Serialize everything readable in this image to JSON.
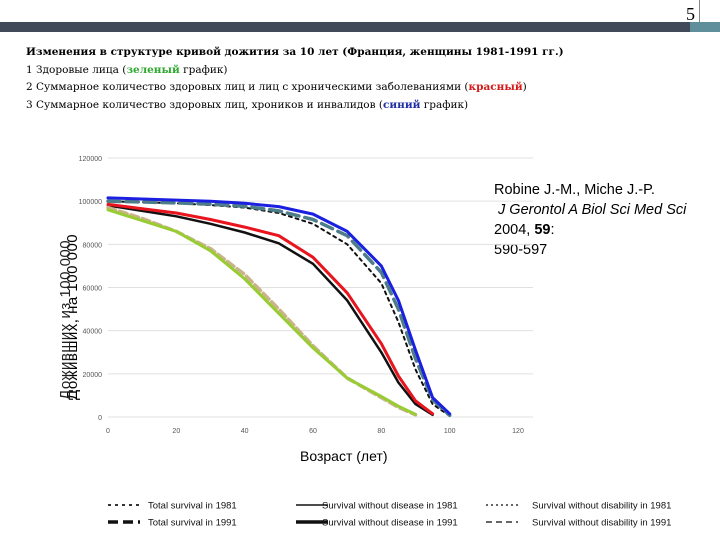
{
  "slide": {
    "page_number": "5"
  },
  "heading": {
    "title": "Изменения в структуре кривой дожития за 10 лет (Франция, женщины 1981-1991 гг.)",
    "line1_prefix": "1 Здоровые лица (",
    "line1_color": "зеленый",
    "line1_suffix": " график)",
    "line2_prefix": "2 Суммарное количество здоровых лиц и лиц с хроническими заболеваниями (",
    "line2_color": "красный",
    "line2_suffix": ")",
    "line3_prefix": "3 Суммарное количество здоровых лиц, хроников и инвалидов (",
    "line3_color": "синий",
    "line3_suffix": " график)"
  },
  "citation": {
    "authors": "Robine J.-M., Miche J.-P.",
    "journal": "J Gerontol A Biol Sci Med Sci",
    "year": " 2004, ",
    "volume": "59",
    "volume_suffix": ":",
    "pages": "590-597"
  },
  "chart_data": {
    "type": "line",
    "ylabel": "Доживших, на 100 000",
    "ylabel_overlay": "Доживших из 100 000",
    "xlabel": "Возраст (лет)",
    "xlim": [
      0,
      120
    ],
    "ylim": [
      0,
      120000
    ],
    "x_ticks": [
      "0",
      "20",
      "40",
      "60",
      "80",
      "100",
      "120"
    ],
    "y_ticks": [
      "0",
      "20000",
      "40000",
      "60000",
      "80000",
      "100000",
      "120000"
    ],
    "legend_placement": "bottom",
    "colors": {
      "green": "#99cc33",
      "red": "#e8141e",
      "blue": "#1a1fe0",
      "teal": "#4e7d8a",
      "tan": "#c8b38a",
      "black": "#111111"
    },
    "series": [
      {
        "name": "Total survival in 1981",
        "style": "dotted-black",
        "x": [
          0,
          10,
          20,
          30,
          40,
          50,
          60,
          70,
          80,
          85,
          90,
          95,
          100
        ],
        "values": [
          100000,
          99500,
          99000,
          98200,
          97000,
          94500,
          89500,
          80000,
          62000,
          44000,
          22000,
          6000,
          500
        ]
      },
      {
        "name": "Total survival in 1991",
        "style": "dashed-teal",
        "x": [
          0,
          10,
          20,
          30,
          40,
          50,
          60,
          70,
          80,
          85,
          90,
          95,
          100
        ],
        "values": [
          100000,
          99600,
          99200,
          98600,
          97600,
          95500,
          91500,
          84000,
          67000,
          50000,
          27000,
          8000,
          800
        ]
      },
      {
        "name": "Survival without disease in 1981",
        "style": "solid-black",
        "x": [
          0,
          10,
          20,
          30,
          40,
          50,
          60,
          70,
          80,
          85,
          90,
          95
        ],
        "values": [
          98000,
          95500,
          93000,
          89500,
          85500,
          80500,
          71000,
          54000,
          30000,
          16000,
          6000,
          1000
        ]
      },
      {
        "name": "Survival without disease in 1991",
        "style": "solid-red",
        "x": [
          0,
          10,
          20,
          30,
          40,
          50,
          60,
          70,
          80,
          85,
          90,
          95
        ],
        "values": [
          98500,
          96500,
          94500,
          91500,
          88000,
          84000,
          74000,
          57500,
          34000,
          19000,
          7500,
          1500
        ]
      },
      {
        "name": "Survival without disability in 1981",
        "style": "dotted-tan",
        "x": [
          0,
          10,
          20,
          30,
          40,
          50,
          60,
          70,
          80,
          85,
          90
        ],
        "values": [
          97000,
          92000,
          86000,
          78000,
          66000,
          50000,
          33000,
          18000,
          9000,
          4500,
          1000
        ]
      },
      {
        "name": "Survival without disability in 1991",
        "style": "solid-green",
        "x": [
          0,
          10,
          20,
          30,
          40,
          50,
          60,
          70,
          80,
          85,
          90
        ],
        "values": [
          96000,
          91000,
          86000,
          77000,
          64000,
          48000,
          32000,
          18000,
          9500,
          5000,
          1200
        ]
      },
      {
        "name": "",
        "style": "solid-blue",
        "x": [
          0,
          10,
          20,
          30,
          40,
          50,
          60,
          70,
          80,
          85,
          90,
          95,
          100
        ],
        "values": [
          101500,
          101000,
          100500,
          100000,
          99000,
          97500,
          94000,
          86000,
          70000,
          54000,
          31000,
          9000,
          1500
        ]
      }
    ],
    "legend": [
      {
        "label": "Total survival in 1981",
        "style": "dotted-black"
      },
      {
        "label": "Total survival in 1991",
        "style": "dashed-black"
      },
      {
        "label": "Survival without disease  in 1981",
        "style": "solid-black-thin"
      },
      {
        "label": "Survival without disease  in 1991",
        "style": "solid-black-thick"
      },
      {
        "label": "Survival without disability  in 1981",
        "style": "dotted-thin"
      },
      {
        "label": "Survival without disability  in 1991",
        "style": "dashed-thin"
      }
    ]
  }
}
